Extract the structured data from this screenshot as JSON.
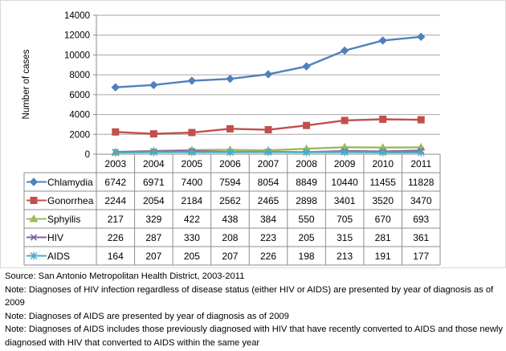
{
  "chart_data": {
    "type": "line",
    "title": "",
    "xlabel": "",
    "ylabel": "Number of cases",
    "ylim": [
      0,
      14000
    ],
    "yticks": [
      0,
      2000,
      4000,
      6000,
      8000,
      10000,
      12000,
      14000
    ],
    "categories": [
      "2003",
      "2004",
      "2005",
      "2006",
      "2007",
      "2008",
      "2009",
      "2010",
      "2011"
    ],
    "legend_position": "table-left",
    "series": [
      {
        "name": "Chlamydia",
        "color": "#4F81BD",
        "marker": "diamond",
        "values": [
          6742,
          6971,
          7400,
          7594,
          8054,
          8849,
          10440,
          11455,
          11828
        ]
      },
      {
        "name": "Gonorrhea",
        "color": "#C0504D",
        "marker": "square",
        "values": [
          2244,
          2054,
          2184,
          2562,
          2465,
          2898,
          3401,
          3520,
          3470
        ]
      },
      {
        "name": "Sphyilis",
        "color": "#9BBB59",
        "marker": "triangle",
        "values": [
          217,
          329,
          422,
          438,
          384,
          550,
          705,
          670,
          693
        ]
      },
      {
        "name": "HIV",
        "color": "#8064A2",
        "marker": "x",
        "values": [
          226,
          287,
          330,
          208,
          223,
          205,
          315,
          281,
          361
        ]
      },
      {
        "name": "AIDS",
        "color": "#4BACC6",
        "marker": "star",
        "values": [
          164,
          207,
          205,
          207,
          226,
          198,
          213,
          191,
          177
        ]
      }
    ]
  },
  "notes": {
    "source": "Source: San Antonio Metropolitan Health District, 2003-2011",
    "note1": "Note: Diagnoses of HIV infection regardless of disease status (either HIV or AIDS) are presented by year of diagnosis as of 2009",
    "note2": "Note: Diagnoses of AIDS are presented by year of diagnosis as of 2009",
    "note3": "Note: Diagnoses of AIDS includes those previously diagnosed with HIV that have recently converted to AIDS and those newly diagnosed with HIV that converted to AIDS within the same year"
  }
}
